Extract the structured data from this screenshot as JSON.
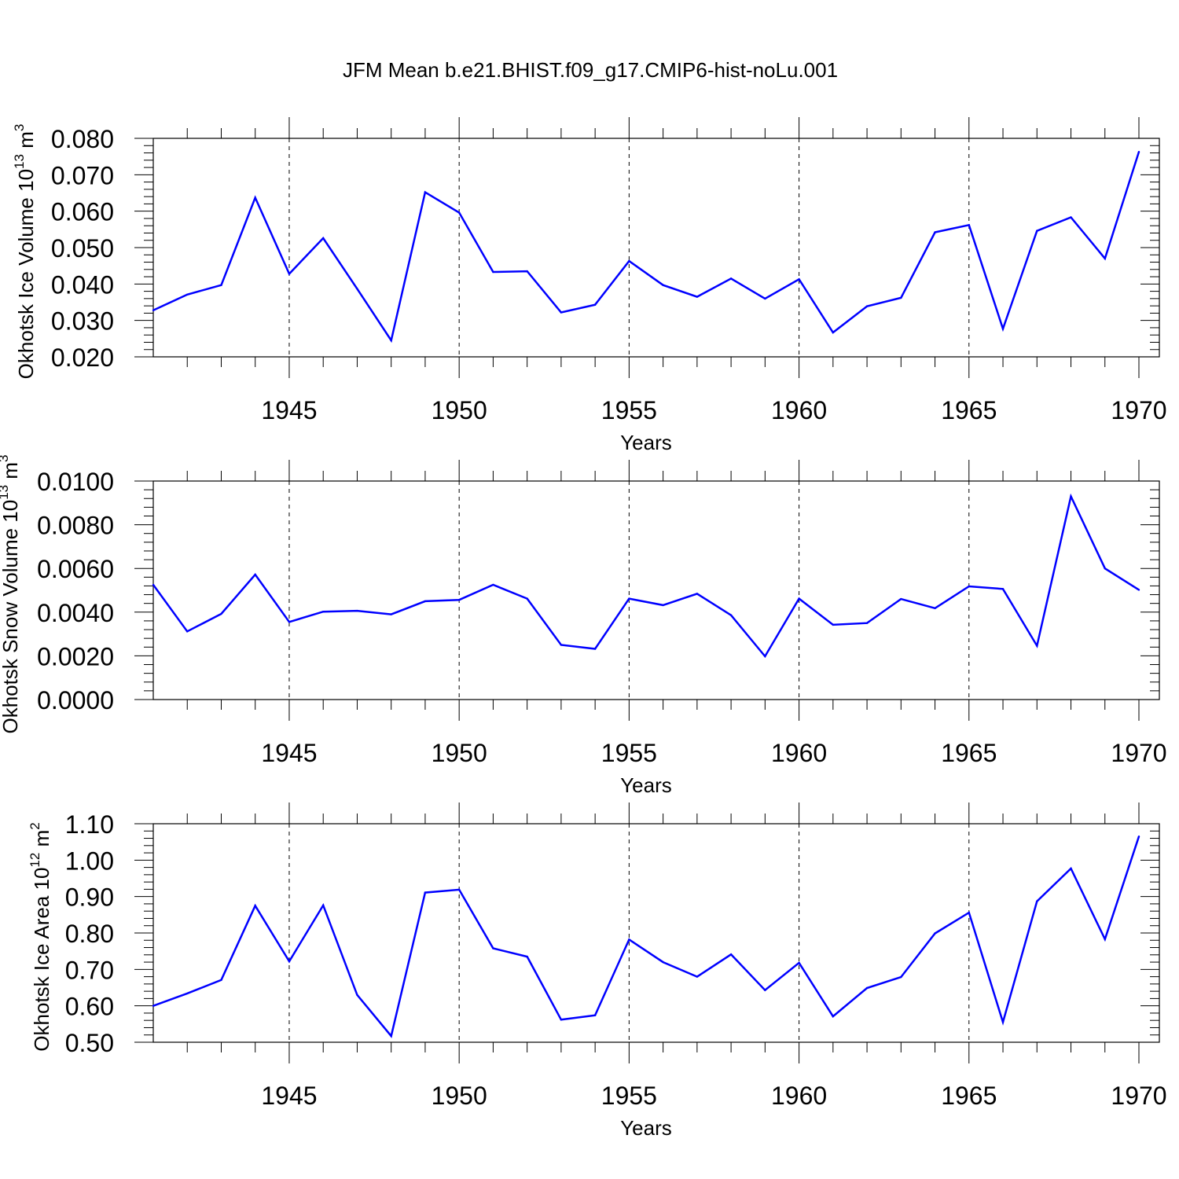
{
  "title": "JFM Mean b.e21.BHIST.f09_g17.CMIP6-hist-noLu.001",
  "colors": {
    "line": "#0000ff",
    "axis": "#000000",
    "grid": "#000000"
  },
  "chart_data": [
    {
      "type": "line",
      "ylabel_main": "Okhotsk Ice Volume 10",
      "ylabel_exp": "13",
      "ylabel_tail": " m",
      "ylabel_unit_exp": "3",
      "xlabel": "Years",
      "xlim": [
        1941,
        1970
      ],
      "ylim": [
        0.02,
        0.08
      ],
      "yticks": [
        "0.020",
        "0.030",
        "0.040",
        "0.050",
        "0.060",
        "0.070",
        "0.080"
      ],
      "xticks": [
        "1945",
        "1950",
        "1955",
        "1960",
        "1965",
        "1970"
      ],
      "x": [
        1941,
        1942,
        1943,
        1944,
        1945,
        1946,
        1947,
        1948,
        1949,
        1950,
        1951,
        1952,
        1953,
        1954,
        1955,
        1956,
        1957,
        1958,
        1959,
        1960,
        1961,
        1962,
        1963,
        1964,
        1965,
        1966,
        1967,
        1968,
        1969,
        1970
      ],
      "values": [
        0.0328,
        0.0371,
        0.0397,
        0.0637,
        0.0428,
        0.0526,
        0.0387,
        0.0245,
        0.0652,
        0.0596,
        0.0433,
        0.0435,
        0.0322,
        0.0343,
        0.0463,
        0.0397,
        0.0365,
        0.0415,
        0.036,
        0.0413,
        0.0267,
        0.0339,
        0.0362,
        0.0542,
        0.0562,
        0.0277,
        0.0546,
        0.0583,
        0.047,
        0.0763
      ]
    },
    {
      "type": "line",
      "ylabel_main": "Okhotsk Snow Volume 10",
      "ylabel_exp": "13",
      "ylabel_tail": " m",
      "ylabel_unit_exp": "3",
      "xlabel": "Years",
      "xlim": [
        1941,
        1970
      ],
      "ylim": [
        0.0,
        0.01
      ],
      "yticks": [
        "0.0000",
        "0.0020",
        "0.0040",
        "0.0060",
        "0.0080",
        "0.0100"
      ],
      "xticks": [
        "1945",
        "1950",
        "1955",
        "1960",
        "1965",
        "1970"
      ],
      "x": [
        1941,
        1942,
        1943,
        1944,
        1945,
        1946,
        1947,
        1948,
        1949,
        1950,
        1951,
        1952,
        1953,
        1954,
        1955,
        1956,
        1957,
        1958,
        1959,
        1960,
        1961,
        1962,
        1963,
        1964,
        1965,
        1966,
        1967,
        1968,
        1969,
        1970
      ],
      "values": [
        0.00525,
        0.00312,
        0.00392,
        0.00572,
        0.00355,
        0.00402,
        0.00406,
        0.0039,
        0.0045,
        0.00456,
        0.00525,
        0.00462,
        0.0025,
        0.00232,
        0.00462,
        0.00432,
        0.00484,
        0.00386,
        0.00198,
        0.00462,
        0.00342,
        0.0035,
        0.0046,
        0.00418,
        0.00518,
        0.00506,
        0.00246,
        0.0093,
        0.006,
        0.00502
      ]
    },
    {
      "type": "line",
      "ylabel_main": "Okhotsk Ice Area 10",
      "ylabel_exp": "12",
      "ylabel_tail": " m",
      "ylabel_unit_exp": "2",
      "xlabel": "Years",
      "xlim": [
        1941,
        1970
      ],
      "ylim": [
        0.5,
        1.1
      ],
      "yticks": [
        "0.50",
        "0.60",
        "0.70",
        "0.80",
        "0.90",
        "1.00",
        "1.10"
      ],
      "xticks": [
        "1945",
        "1950",
        "1955",
        "1960",
        "1965",
        "1970"
      ],
      "x": [
        1941,
        1942,
        1943,
        1944,
        1945,
        1946,
        1947,
        1948,
        1949,
        1950,
        1951,
        1952,
        1953,
        1954,
        1955,
        1956,
        1957,
        1958,
        1959,
        1960,
        1961,
        1962,
        1963,
        1964,
        1965,
        1966,
        1967,
        1968,
        1969,
        1970
      ],
      "values": [
        0.6,
        0.634,
        0.671,
        0.875,
        0.722,
        0.876,
        0.63,
        0.517,
        0.911,
        0.919,
        0.758,
        0.735,
        0.562,
        0.574,
        0.782,
        0.72,
        0.68,
        0.741,
        0.643,
        0.718,
        0.571,
        0.649,
        0.679,
        0.799,
        0.856,
        0.555,
        0.887,
        0.977,
        0.783,
        1.065
      ]
    }
  ]
}
